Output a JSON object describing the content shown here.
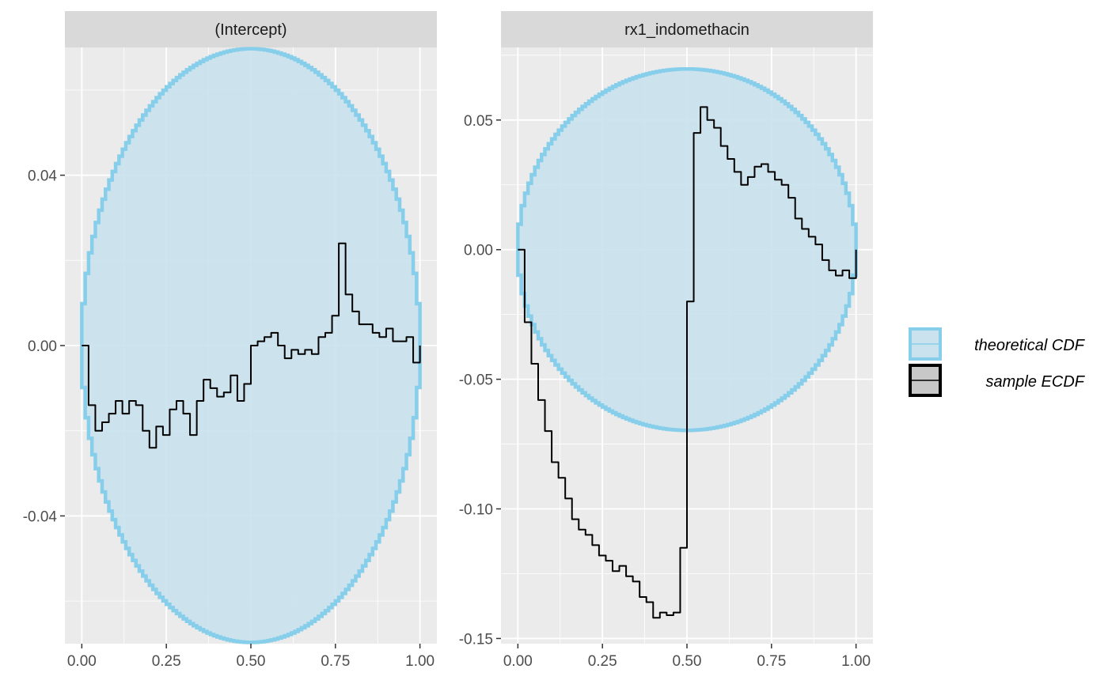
{
  "chart_data": [
    {
      "type": "line",
      "panel": "(Intercept)",
      "xlim": [
        -0.05,
        1.05
      ],
      "ylim": [
        -0.07,
        0.07
      ],
      "x_ticks": [
        0.0,
        0.25,
        0.5,
        0.75,
        1.0
      ],
      "x_tick_labels": [
        "0.00",
        "0.25",
        "0.50",
        "0.75",
        "1.00"
      ],
      "y_ticks": [
        -0.04,
        0.0,
        0.04
      ],
      "y_tick_labels": [
        "-0.04",
        "0.00",
        "0.04"
      ],
      "band_halfwidth_max": 0.0697,
      "sample_ecdf": {
        "x": [
          0.0,
          0.02,
          0.04,
          0.06,
          0.08,
          0.1,
          0.12,
          0.14,
          0.16,
          0.18,
          0.2,
          0.22,
          0.24,
          0.26,
          0.28,
          0.3,
          0.32,
          0.34,
          0.36,
          0.38,
          0.4,
          0.42,
          0.44,
          0.46,
          0.48,
          0.5,
          0.52,
          0.54,
          0.56,
          0.58,
          0.6,
          0.62,
          0.64,
          0.66,
          0.68,
          0.7,
          0.72,
          0.74,
          0.76,
          0.78,
          0.8,
          0.82,
          0.84,
          0.86,
          0.88,
          0.9,
          0.92,
          0.94,
          0.96,
          0.98,
          1.0
        ],
        "y": [
          0.0,
          -0.014,
          -0.02,
          -0.018,
          -0.016,
          -0.013,
          -0.016,
          -0.013,
          -0.014,
          -0.02,
          -0.024,
          -0.019,
          -0.021,
          -0.015,
          -0.013,
          -0.016,
          -0.021,
          -0.013,
          -0.008,
          -0.01,
          -0.012,
          -0.011,
          -0.007,
          -0.013,
          -0.009,
          0.0,
          0.001,
          0.002,
          0.003,
          0.0,
          -0.003,
          -0.001,
          -0.002,
          -0.001,
          -0.002,
          0.002,
          0.003,
          0.007,
          0.024,
          0.012,
          0.008,
          0.005,
          0.005,
          0.003,
          0.002,
          0.004,
          0.001,
          0.001,
          0.002,
          -0.004,
          0.0
        ]
      }
    },
    {
      "type": "line",
      "panel": "rx1_indomethacin",
      "xlim": [
        -0.05,
        1.05
      ],
      "ylim": [
        -0.152,
        0.078
      ],
      "x_ticks": [
        0.0,
        0.25,
        0.5,
        0.75,
        1.0
      ],
      "x_tick_labels": [
        "0.00",
        "0.25",
        "0.50",
        "0.75",
        "1.00"
      ],
      "y_ticks": [
        -0.15,
        -0.1,
        -0.05,
        0.0,
        0.05
      ],
      "y_tick_labels": [
        "-0.15",
        "-0.10",
        "-0.05",
        "0.00",
        "0.05"
      ],
      "band_halfwidth_max": 0.0697,
      "sample_ecdf": {
        "x": [
          0.0,
          0.02,
          0.04,
          0.06,
          0.08,
          0.1,
          0.12,
          0.14,
          0.16,
          0.18,
          0.2,
          0.22,
          0.24,
          0.26,
          0.28,
          0.3,
          0.32,
          0.34,
          0.36,
          0.38,
          0.4,
          0.42,
          0.44,
          0.46,
          0.48,
          0.5,
          0.52,
          0.54,
          0.56,
          0.58,
          0.6,
          0.62,
          0.64,
          0.66,
          0.68,
          0.7,
          0.72,
          0.74,
          0.76,
          0.78,
          0.8,
          0.82,
          0.84,
          0.86,
          0.88,
          0.9,
          0.92,
          0.94,
          0.96,
          0.98,
          1.0
        ],
        "y": [
          0.0,
          -0.028,
          -0.044,
          -0.058,
          -0.07,
          -0.082,
          -0.088,
          -0.096,
          -0.104,
          -0.108,
          -0.11,
          -0.114,
          -0.118,
          -0.12,
          -0.124,
          -0.122,
          -0.126,
          -0.128,
          -0.134,
          -0.136,
          -0.142,
          -0.14,
          -0.141,
          -0.14,
          -0.115,
          -0.02,
          0.045,
          0.055,
          0.05,
          0.047,
          0.04,
          0.035,
          0.03,
          0.025,
          0.028,
          0.032,
          0.033,
          0.03,
          0.027,
          0.025,
          0.02,
          0.012,
          0.008,
          0.005,
          0.002,
          -0.004,
          -0.008,
          -0.01,
          -0.008,
          -0.011,
          0.0
        ]
      }
    }
  ],
  "legend": {
    "items": [
      {
        "label": "theoretical CDF",
        "fill": "#c9e2ee",
        "stroke": "#87ceeb"
      },
      {
        "label": "sample ECDF",
        "fill": "#c8c8c8",
        "stroke": "#000000"
      }
    ],
    "position": "right"
  },
  "colors": {
    "panel_background": "#ebebeb",
    "strip_background": "#d9d9d9",
    "grid": "#ffffff",
    "band_fill": "#c9e2ee",
    "band_stroke": "#87ceeb",
    "ecdf_line": "#000000"
  }
}
